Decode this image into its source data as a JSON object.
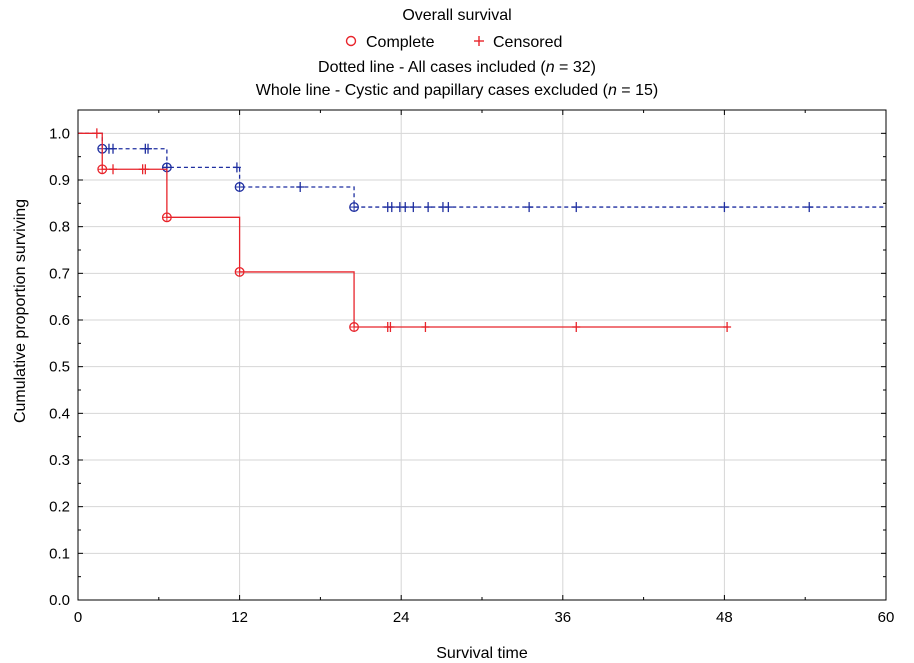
{
  "chart_data": {
    "type": "line",
    "title": "Overall survival",
    "subtitle_parts": {
      "line1_pre": "Dotted line - All cases included (",
      "n": "n",
      "line1_post": " = 32)",
      "line2_pre": "Whole line - Cystic and papillary cases excluded (",
      "line2_post": " = 15)"
    },
    "legend": [
      {
        "label": "Complete",
        "marker": "circle",
        "color": "#e8242b"
      },
      {
        "label": "Censored",
        "marker": "plus",
        "color": "#e8242b"
      }
    ],
    "legend_placement": "top-center",
    "xlabel": "Survival time",
    "ylabel": "Cumulative proportion surviving",
    "xlim": [
      0,
      60
    ],
    "ylim": [
      0,
      1.05
    ],
    "xticks": [
      "0",
      "12",
      "24",
      "36",
      "48",
      "60"
    ],
    "yticks": [
      "0.0",
      "0.1",
      "0.2",
      "0.3",
      "0.4",
      "0.5",
      "0.6",
      "0.7",
      "0.8",
      "0.9",
      "1.0"
    ],
    "grid": true,
    "series": [
      {
        "name": "All cases included (n = 32)",
        "style": "dotted",
        "color": "#1f2fa0",
        "steps": [
          [
            0,
            1.0
          ],
          [
            1.8,
            0.967
          ],
          [
            6.6,
            0.927
          ],
          [
            12.0,
            0.885
          ],
          [
            20.5,
            0.842
          ],
          [
            60,
            0.842
          ]
        ],
        "complete": [
          [
            1.8,
            0.967
          ],
          [
            6.6,
            0.927
          ],
          [
            12.0,
            0.885
          ],
          [
            20.5,
            0.842
          ]
        ],
        "censored": [
          [
            2.3,
            0.967
          ],
          [
            2.6,
            0.967
          ],
          [
            5.0,
            0.967
          ],
          [
            5.2,
            0.967
          ],
          [
            6.6,
            0.927
          ],
          [
            11.8,
            0.927
          ],
          [
            16.5,
            0.885
          ],
          [
            23.0,
            0.842
          ],
          [
            23.3,
            0.842
          ],
          [
            23.9,
            0.842
          ],
          [
            24.3,
            0.842
          ],
          [
            24.9,
            0.842
          ],
          [
            26.0,
            0.842
          ],
          [
            27.1,
            0.842
          ],
          [
            27.5,
            0.842
          ],
          [
            33.5,
            0.842
          ],
          [
            37.0,
            0.842
          ],
          [
            48.0,
            0.842
          ],
          [
            54.3,
            0.842
          ]
        ]
      },
      {
        "name": "Cystic and papillary cases excluded (n = 15)",
        "style": "solid",
        "color": "#e8242b",
        "steps": [
          [
            0,
            1.0
          ],
          [
            1.8,
            0.923
          ],
          [
            6.6,
            0.82
          ],
          [
            12.0,
            0.703
          ],
          [
            20.5,
            0.585
          ],
          [
            48.2,
            0.585
          ]
        ],
        "complete": [
          [
            1.8,
            0.923
          ],
          [
            6.6,
            0.82
          ],
          [
            12.0,
            0.703
          ],
          [
            20.5,
            0.585
          ]
        ],
        "censored": [
          [
            1.4,
            1.0
          ],
          [
            2.6,
            0.923
          ],
          [
            4.8,
            0.923
          ],
          [
            5.0,
            0.923
          ],
          [
            23.0,
            0.585
          ],
          [
            23.2,
            0.585
          ],
          [
            25.8,
            0.585
          ],
          [
            37.0,
            0.585
          ],
          [
            48.2,
            0.585
          ]
        ]
      }
    ]
  }
}
